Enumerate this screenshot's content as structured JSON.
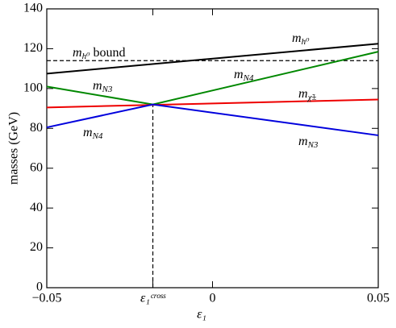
{
  "chart_data": {
    "type": "line",
    "xlabel": "ε₁",
    "ylabel": "masses (GeV)",
    "xlim": [
      -0.05,
      0.05
    ],
    "ylim": [
      0,
      140
    ],
    "xticks": [
      {
        "value": -0.05,
        "label": "−0.05"
      },
      {
        "value": -0.018,
        "label": "ε₁ᶜʳᵒˢˢ"
      },
      0,
      0.05
    ],
    "yticks": [
      0,
      20,
      40,
      60,
      80,
      100,
      120,
      140
    ],
    "series": [
      {
        "color": "#000000",
        "x": [
          -0.05,
          0.05
        ],
        "values": [
          107.5,
          122.5
        ]
      },
      {
        "color": "#008800",
        "x": [
          -0.05,
          -0.018,
          0.05
        ],
        "values": [
          101,
          92,
          118.5
        ]
      },
      {
        "color": "#ee0000",
        "x": [
          -0.05,
          0.05
        ],
        "values": [
          90.5,
          94.5
        ]
      },
      {
        "color": "#0000dd",
        "x": [
          -0.05,
          -0.018,
          0.05
        ],
        "values": [
          80.5,
          92,
          76.5
        ]
      }
    ],
    "hline": 114,
    "vline": {
      "x": -0.018,
      "top": 92
    },
    "annotations": [
      {
        "text": "m",
        "sub": "h⁰",
        "suffix": " bound"
      },
      {
        "text": "m",
        "sub": "h⁰"
      },
      {
        "text": "m",
        "sub": "N4"
      },
      {
        "text": "m",
        "sub": "N3"
      },
      {
        "text": "m",
        "sub": "χ̃±"
      },
      {
        "text": "m",
        "sub": "N4"
      },
      {
        "text": "m",
        "sub": "N3"
      }
    ]
  }
}
